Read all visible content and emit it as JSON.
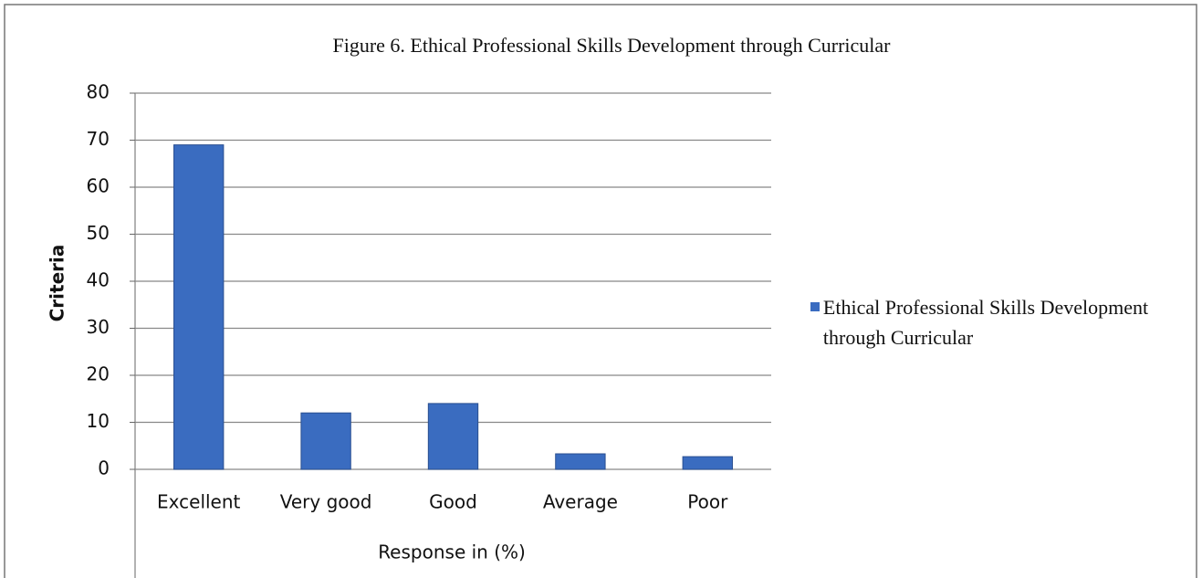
{
  "chart_data": {
    "type": "bar",
    "title": "Figure 6. Ethical Professional Skills Development through Curricular",
    "x_label": "Response in (%)",
    "y_label": "Criteria",
    "categories": [
      "Excellent",
      "Very good",
      "Good",
      "Average",
      "Poor"
    ],
    "series": [
      {
        "name": "Ethical Professional Skills Development through Curricular",
        "color": "#3a6cc0",
        "values": [
          69,
          12,
          14,
          3.3,
          2.7
        ]
      }
    ],
    "ylim": [
      0,
      80
    ],
    "yticks": [
      0,
      10,
      20,
      30,
      40,
      50,
      60,
      70,
      80
    ],
    "grid": true,
    "legend": "right"
  }
}
